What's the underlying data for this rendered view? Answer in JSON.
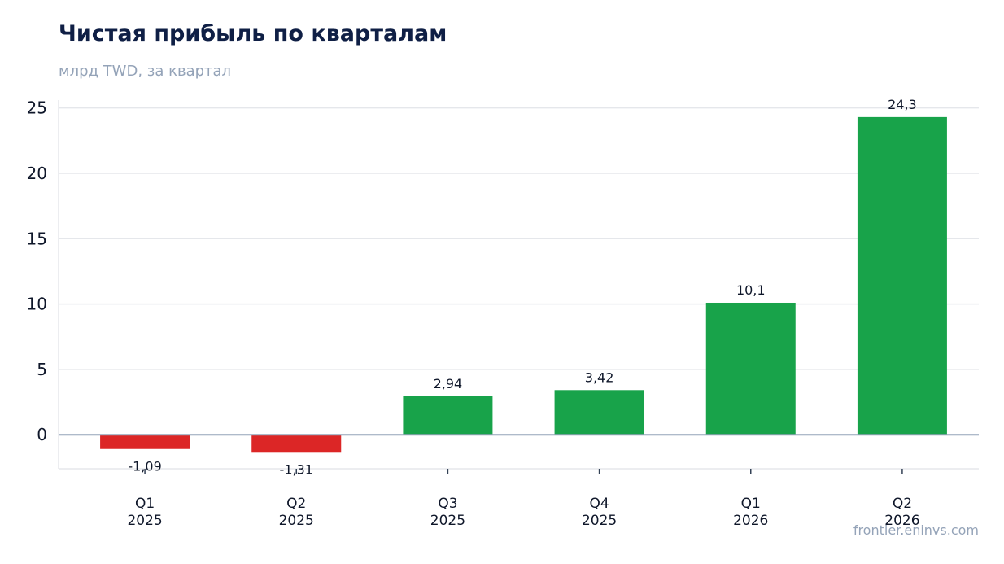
{
  "title": "Чистая прибыль по кварталам",
  "subtitle": "млрд TWD, за квартал",
  "source": "frontier.eninvs.com",
  "colors": {
    "positive": "#18a34a",
    "negative": "#dc2626",
    "grid": "#e5e7eb",
    "zero": "#94a3b8",
    "text": "#0f172a"
  },
  "chart_data": {
    "type": "bar",
    "categories": [
      [
        "Q1",
        "2025"
      ],
      [
        "Q2",
        "2025"
      ],
      [
        "Q3",
        "2025"
      ],
      [
        "Q4",
        "2025"
      ],
      [
        "Q1",
        "2026"
      ],
      [
        "Q2",
        "2026"
      ]
    ],
    "values": [
      -1.09,
      -1.31,
      2.94,
      3.42,
      10.1,
      24.3
    ],
    "data_labels": [
      "-1,09",
      "-1,31",
      "2,94",
      "3,42",
      "10,1",
      "24,3"
    ],
    "yticks": [
      0,
      5,
      10,
      15,
      20,
      25
    ],
    "ylim": [
      -2.6,
      25.6
    ],
    "grid": true
  }
}
